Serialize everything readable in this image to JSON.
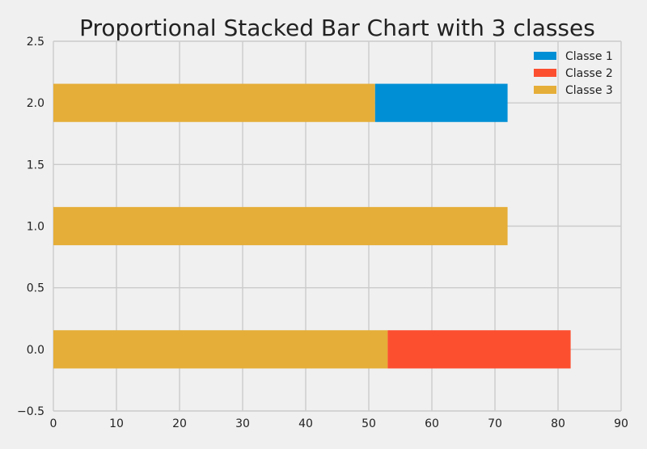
{
  "chart_data": {
    "type": "bar",
    "orientation": "horizontal",
    "stacked": true,
    "title": "Proportional Stacked Bar Chart with 3 classes",
    "xlabel": "",
    "ylabel": "",
    "xlim": [
      0,
      90
    ],
    "ylim": [
      -0.5,
      2.5
    ],
    "x_ticks": [
      "0",
      "10",
      "20",
      "30",
      "40",
      "50",
      "60",
      "70",
      "80",
      "90"
    ],
    "y_ticks": [
      "−0.5",
      "0.0",
      "0.5",
      "1.0",
      "1.5",
      "2.0",
      "2.5"
    ],
    "grid": true,
    "legend_position": "top-right",
    "categories": [
      0,
      1,
      2
    ],
    "series": [
      {
        "name": "Classe 3",
        "color": "#e5ae38",
        "values": [
          53,
          72,
          51
        ]
      },
      {
        "name": "Classe 2",
        "color": "#fc4f30",
        "values": [
          29,
          0,
          0
        ]
      },
      {
        "name": "Classe 1",
        "color": "#008fd5",
        "values": [
          0,
          0,
          21
        ]
      }
    ],
    "legend": [
      {
        "name": "Classe 1",
        "color": "#008fd5"
      },
      {
        "name": "Classe 2",
        "color": "#fc4f30"
      },
      {
        "name": "Classe 3",
        "color": "#e5ae38"
      }
    ]
  }
}
